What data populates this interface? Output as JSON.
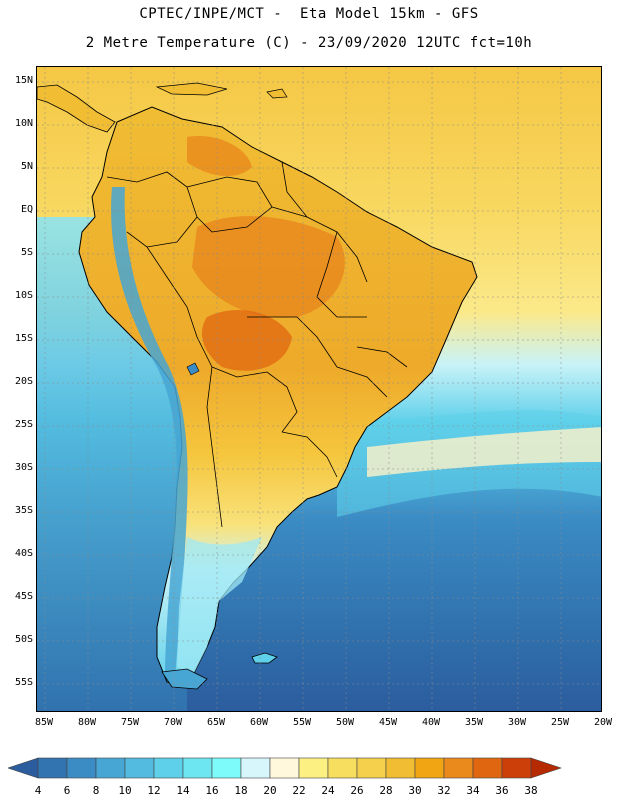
{
  "header": {
    "title_line1": "CPTEC/INPE/MCT -  Eta Model 15km - GFS",
    "title_line2": "2 Metre Temperature (C) - 23/09/2020 12UTC fct=10h"
  },
  "map": {
    "region": "South America",
    "lat_labels": [
      "15N",
      "10N",
      "5N",
      "EQ",
      "5S",
      "10S",
      "15S",
      "20S",
      "25S",
      "30S",
      "35S",
      "40S",
      "45S",
      "50S",
      "55S"
    ],
    "lon_labels": [
      "85W",
      "80W",
      "75W",
      "70W",
      "65W",
      "60W",
      "55W",
      "50W",
      "45W",
      "40W",
      "35W",
      "30W",
      "25W",
      "20W"
    ],
    "colors": {
      "ocean_warm": "#f5d04c",
      "land_hot": "#e88a1f",
      "land_warm": "#f0b431",
      "ocean_cold": "#2c5fa0",
      "border": "#000000"
    }
  },
  "colorbar": {
    "labels": [
      "4",
      "6",
      "8",
      "10",
      "12",
      "14",
      "16",
      "18",
      "20",
      "22",
      "24",
      "26",
      "28",
      "30",
      "32",
      "34",
      "36",
      "38"
    ],
    "colors": [
      "#2b5c9e",
      "#3174b0",
      "#3b8bc4",
      "#47a6d4",
      "#53bbdf",
      "#5fd0ea",
      "#6ee6f2",
      "#7dfafa",
      "#d6f6fb",
      "#fff8dc",
      "#fcf082",
      "#f8de5e",
      "#f5d04c",
      "#f0bd33",
      "#f2a512",
      "#ea8a1c",
      "#e06610",
      "#cd3f08",
      "#b52a00"
    ]
  }
}
